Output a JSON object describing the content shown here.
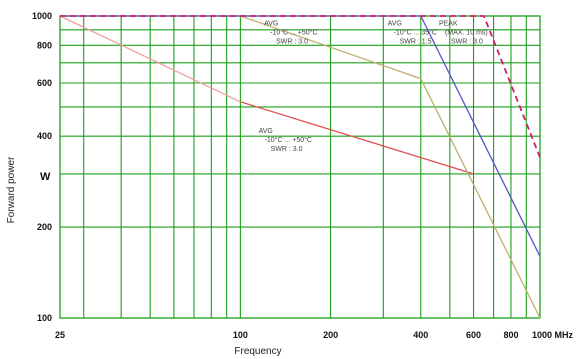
{
  "chart_data": {
    "type": "line",
    "xlabel": "Frequency",
    "ylabel": "Forward power",
    "y_unit_label": "W",
    "x_unit_suffix": "MHz",
    "x_scale": "log",
    "y_scale": "log",
    "xlim": [
      25,
      1000
    ],
    "ylim": [
      100,
      1000
    ],
    "x_ticks": [
      {
        "value": 25,
        "label": "25"
      },
      {
        "value": 100,
        "label": "100"
      },
      {
        "value": 200,
        "label": "200"
      },
      {
        "value": 400,
        "label": "400"
      },
      {
        "value": 600,
        "label": "600"
      },
      {
        "value": 800,
        "label": "800"
      },
      {
        "value": 1000,
        "label": "1000 MHz"
      }
    ],
    "y_ticks": [
      {
        "value": 100,
        "label": "100"
      },
      {
        "value": 200,
        "label": "200"
      },
      {
        "value": 400,
        "label": "400"
      },
      {
        "value": 600,
        "label": "600"
      },
      {
        "value": 800,
        "label": "800"
      },
      {
        "value": 1000,
        "label": "1000"
      }
    ],
    "grid_x": [
      30,
      40,
      50,
      60,
      70,
      80,
      90,
      100,
      200,
      300,
      400,
      500,
      600,
      700,
      800,
      900
    ],
    "grid_y": [
      200,
      300,
      400,
      500,
      600,
      700,
      800,
      900
    ],
    "grid_color": "#1aa01a",
    "series": [
      {
        "color": "#f0a0a0",
        "dash": false,
        "points": [
          [
            25,
            1000
          ],
          [
            100,
            520
          ]
        ]
      },
      {
        "color": "#e05050",
        "dash": false,
        "points": [
          [
            100,
            520
          ],
          [
            600,
            300
          ]
        ]
      },
      {
        "color": "#c0b070",
        "dash": false,
        "points": [
          [
            25,
            1000
          ],
          [
            100,
            1000
          ],
          [
            400,
            620
          ],
          [
            1000,
            100
          ]
        ]
      },
      {
        "color": "#5555cc",
        "dash": false,
        "points": [
          [
            25,
            1000
          ],
          [
            400,
            1000
          ],
          [
            1000,
            160
          ]
        ]
      },
      {
        "color": "#d02070",
        "dash": true,
        "points": [
          [
            25,
            1000
          ],
          [
            650,
            1000
          ],
          [
            1000,
            340
          ]
        ]
      }
    ],
    "annotations": [
      {
        "lines": [
          "AVG",
          "-10°C ... +50°C",
          "SWR : 3.0"
        ],
        "x": 120,
        "y": 930
      },
      {
        "lines": [
          "AVG",
          "-10°C ... 35°C",
          "SWR : 1.5"
        ],
        "x": 310,
        "y": 930
      },
      {
        "lines": [
          "PEAK",
          "(MAX. 10 ms)",
          "SWR : 3.0"
        ],
        "x": 460,
        "y": 930
      },
      {
        "lines": [
          "AVG",
          "-10°C ... +50°C",
          "SWR : 3.0"
        ],
        "x": 115,
        "y": 410
      }
    ]
  }
}
